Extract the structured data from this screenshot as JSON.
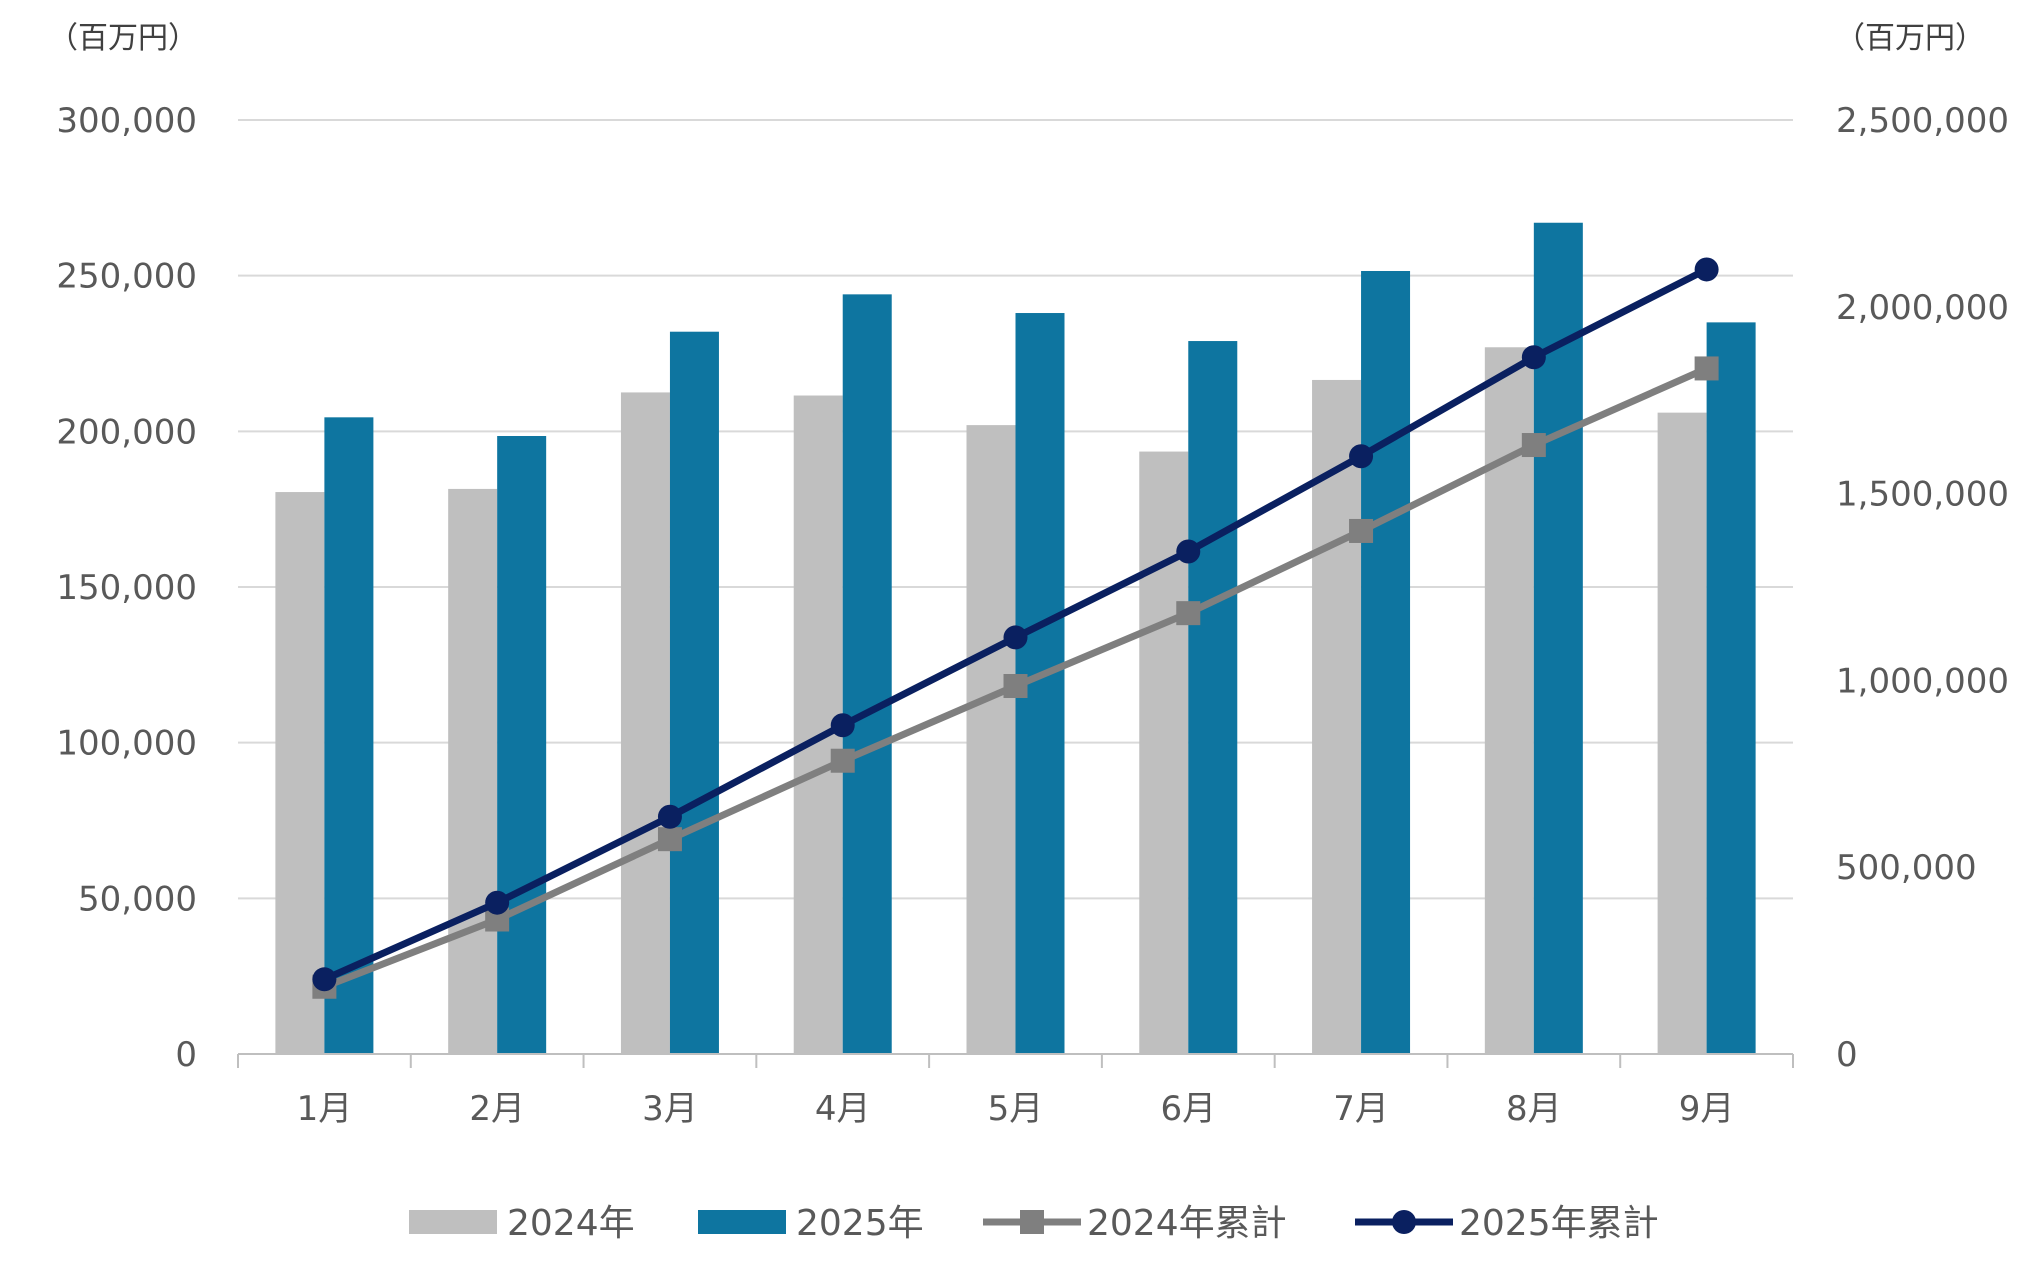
{
  "chart_data": {
    "type": "bar",
    "categories": [
      "1月",
      "2月",
      "3月",
      "4月",
      "5月",
      "6月",
      "7月",
      "8月",
      "9月"
    ],
    "left_axis": {
      "unit_label": "（百万円）",
      "ylim": [
        0,
        300000
      ],
      "ticks": [
        0,
        50000,
        100000,
        150000,
        200000,
        250000,
        300000
      ],
      "tick_labels": [
        "0",
        "50,000",
        "100,000",
        "150,000",
        "200,000",
        "250,000",
        "300,000"
      ]
    },
    "right_axis": {
      "unit_label": "（百万円）",
      "ylim": [
        0,
        2500000
      ],
      "ticks": [
        0,
        500000,
        1000000,
        1500000,
        2000000,
        2500000
      ],
      "tick_labels": [
        "0",
        "500,000",
        "1,000,000",
        "1,500,000",
        "2,000,000",
        "2,500,000"
      ]
    },
    "series": [
      {
        "name": "2024年",
        "type": "bar",
        "axis": "left",
        "color": "#bfbfbf",
        "values": [
          180500,
          181500,
          212500,
          211500,
          202000,
          193500,
          216500,
          227000,
          206000
        ]
      },
      {
        "name": "2025年",
        "type": "bar",
        "axis": "left",
        "color": "#0e75a0",
        "values": [
          204500,
          198500,
          232000,
          244000,
          238000,
          229000,
          251500,
          267000,
          235000
        ]
      },
      {
        "name": "2024年累計",
        "type": "line",
        "marker": "square",
        "axis": "right",
        "color": "#7f7f7f",
        "values": [
          180000,
          360000,
          575000,
          785000,
          985000,
          1180000,
          1400000,
          1630000,
          1835000
        ]
      },
      {
        "name": "2025年累計",
        "type": "line",
        "marker": "circle",
        "axis": "right",
        "color": "#0a2060",
        "values": [
          200000,
          405000,
          635000,
          880000,
          1115000,
          1345000,
          1600000,
          1865000,
          2100000
        ]
      }
    ],
    "grid": true,
    "legend_position": "bottom"
  }
}
